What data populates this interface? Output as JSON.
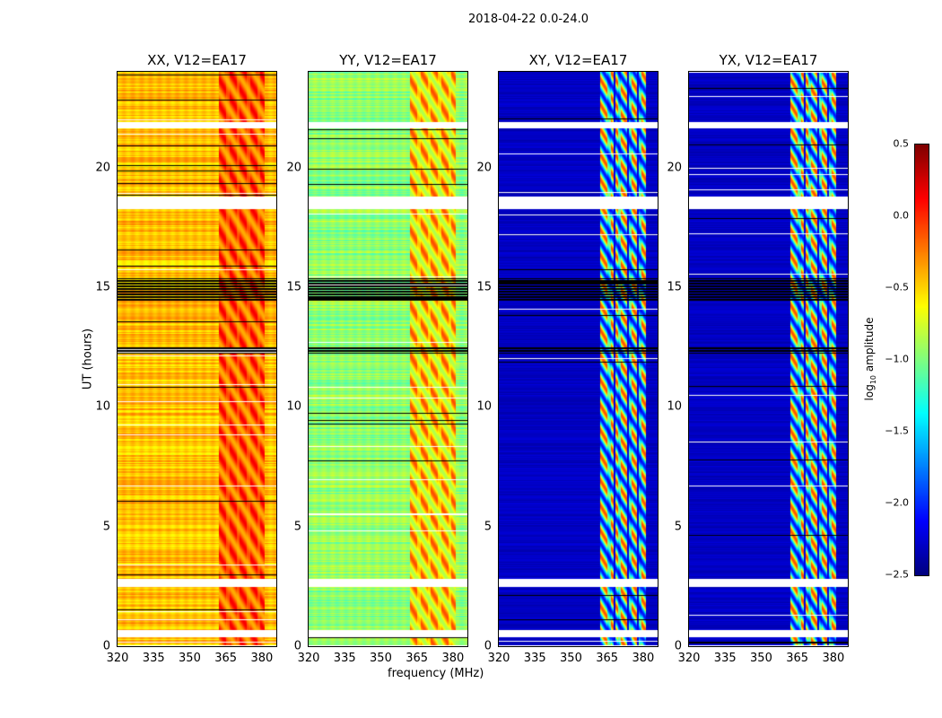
{
  "chart_data": {
    "type": "heatmap",
    "title": "2018-04-22 0.0-24.0",
    "xlabel": "frequency (MHz)",
    "ylabel": "UT (hours)",
    "xlim": [
      320,
      386
    ],
    "ylim": [
      0,
      24
    ],
    "xticks": [
      "320",
      "335",
      "350",
      "365",
      "380"
    ],
    "yticks": [
      "0",
      "5",
      "10",
      "15",
      "20"
    ],
    "colormap": "jet",
    "colorbar": {
      "label": "log10 amplitude",
      "label_main": "log",
      "label_sub": "10",
      "label_rest": " amplitude",
      "range": [
        -2.5,
        0.5
      ],
      "ticks": [
        "0.5",
        "0.0",
        "−0.5",
        "−1.0",
        "−1.5",
        "−2.0",
        "−2.5"
      ]
    },
    "flagged_hours": [
      [
        0.0,
        0.05
      ],
      [
        0.4,
        0.7
      ],
      [
        2.5,
        2.85
      ],
      [
        18.3,
        18.8
      ],
      [
        21.65,
        21.9
      ]
    ],
    "zero_hours": [
      [
        12.25,
        12.55
      ],
      [
        14.4,
        15.4
      ]
    ],
    "rfi_band_mhz": [
      362,
      381
    ],
    "panels": [
      {
        "title": "XX, V12=EA17",
        "base": -0.45,
        "band_peak": 0.15
      },
      {
        "title": "YY, V12=EA17",
        "base": -0.95,
        "band_peak": -0.1
      },
      {
        "title": "XY, V12=EA17",
        "base": -2.3,
        "band_peak": -0.1
      },
      {
        "title": "YX, V12=EA17",
        "base": -2.3,
        "band_peak": -0.1
      }
    ]
  }
}
